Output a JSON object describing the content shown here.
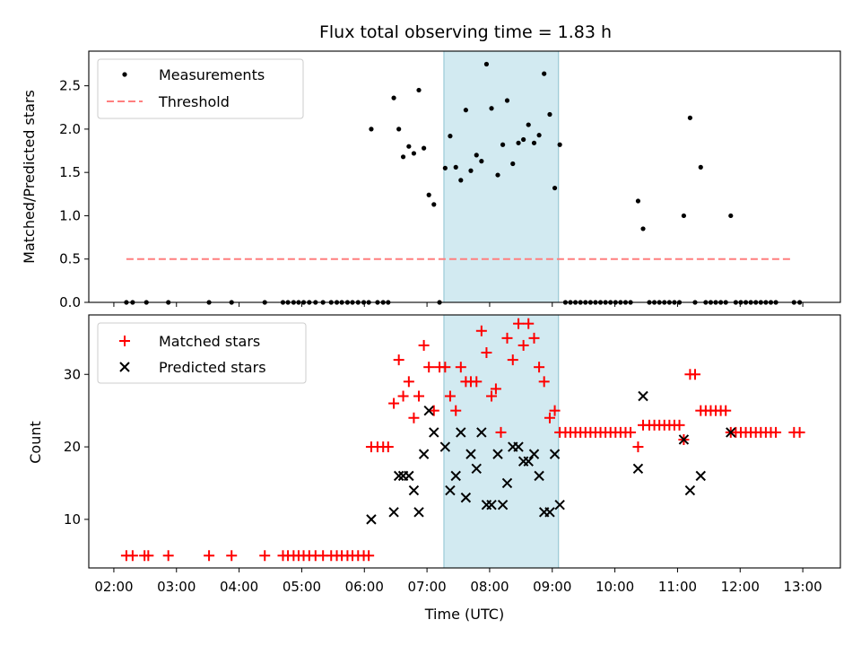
{
  "chart_data": {
    "title": "Flux total observing time = 1.83 h",
    "xlabel": "Time (UTC)",
    "x_unit": "hours UTC",
    "xlim": [
      1.6,
      13.6
    ],
    "x_ticks": [
      {
        "value": 2,
        "label": "02:00"
      },
      {
        "value": 3,
        "label": "03:00"
      },
      {
        "value": 4,
        "label": "04:00"
      },
      {
        "value": 5,
        "label": "05:00"
      },
      {
        "value": 6,
        "label": "06:00"
      },
      {
        "value": 7,
        "label": "07:00"
      },
      {
        "value": 8,
        "label": "08:00"
      },
      {
        "value": 9,
        "label": "09:00"
      },
      {
        "value": 10,
        "label": "10:00"
      },
      {
        "value": 11,
        "label": "11:00"
      },
      {
        "value": 12,
        "label": "12:00"
      },
      {
        "value": 13,
        "label": "13:00"
      }
    ],
    "shaded_span": {
      "x_start": 7.27,
      "x_end": 9.1,
      "color": "#add8e6"
    },
    "top": {
      "type": "scatter",
      "ylabel": "Matched/Predicted stars",
      "ylim": [
        0,
        2.9
      ],
      "y_ticks": [
        0.0,
        0.5,
        1.0,
        1.5,
        2.0,
        2.5
      ],
      "y_tick_labels": [
        "0.0",
        "0.5",
        "1.0",
        "1.5",
        "2.0",
        "2.5"
      ],
      "legend_position": "upper-left",
      "threshold": {
        "name": "Threshold",
        "value": 0.5,
        "x_range": [
          2.2,
          12.85
        ],
        "color": "#ff7f7f",
        "style": "dashed"
      },
      "measurements": {
        "name": "Measurements",
        "color": "#000000",
        "points": [
          [
            2.2,
            0
          ],
          [
            2.3,
            0
          ],
          [
            2.52,
            0
          ],
          [
            2.87,
            0
          ],
          [
            3.52,
            0
          ],
          [
            3.88,
            0
          ],
          [
            4.41,
            0
          ],
          [
            4.7,
            0
          ],
          [
            4.78,
            0
          ],
          [
            4.87,
            0
          ],
          [
            4.95,
            0
          ],
          [
            5.03,
            0
          ],
          [
            5.12,
            0
          ],
          [
            5.22,
            0
          ],
          [
            5.34,
            0
          ],
          [
            5.47,
            0
          ],
          [
            5.56,
            0
          ],
          [
            5.64,
            0
          ],
          [
            5.73,
            0
          ],
          [
            5.81,
            0
          ],
          [
            5.9,
            0
          ],
          [
            5.99,
            0
          ],
          [
            6.07,
            0
          ],
          [
            6.11,
            2.0
          ],
          [
            6.21,
            0
          ],
          [
            6.3,
            0
          ],
          [
            6.38,
            0
          ],
          [
            6.47,
            2.36
          ],
          [
            6.55,
            2.0
          ],
          [
            6.62,
            1.68
          ],
          [
            6.71,
            1.8
          ],
          [
            6.79,
            1.72
          ],
          [
            6.87,
            2.45
          ],
          [
            6.95,
            1.78
          ],
          [
            7.03,
            1.24
          ],
          [
            7.11,
            1.13
          ],
          [
            7.2,
            0
          ],
          [
            7.29,
            1.55
          ],
          [
            7.37,
            1.92
          ],
          [
            7.46,
            1.56
          ],
          [
            7.54,
            1.41
          ],
          [
            7.62,
            2.22
          ],
          [
            7.7,
            1.52
          ],
          [
            7.79,
            1.7
          ],
          [
            7.87,
            1.63
          ],
          [
            7.95,
            2.75
          ],
          [
            8.03,
            2.24
          ],
          [
            8.13,
            1.47
          ],
          [
            8.21,
            1.82
          ],
          [
            8.28,
            2.33
          ],
          [
            8.37,
            1.6
          ],
          [
            8.46,
            1.84
          ],
          [
            8.54,
            1.88
          ],
          [
            8.62,
            2.05
          ],
          [
            8.71,
            1.84
          ],
          [
            8.79,
            1.93
          ],
          [
            8.87,
            2.64
          ],
          [
            8.96,
            2.17
          ],
          [
            9.04,
            1.32
          ],
          [
            9.12,
            1.82
          ],
          [
            9.21,
            0
          ],
          [
            9.29,
            0
          ],
          [
            9.37,
            0
          ],
          [
            9.45,
            0
          ],
          [
            9.53,
            0
          ],
          [
            9.61,
            0
          ],
          [
            9.69,
            0
          ],
          [
            9.77,
            0
          ],
          [
            9.85,
            0
          ],
          [
            9.93,
            0
          ],
          [
            10.01,
            0
          ],
          [
            10.09,
            0
          ],
          [
            10.17,
            0
          ],
          [
            10.25,
            0
          ],
          [
            10.37,
            1.17
          ],
          [
            10.45,
            0.85
          ],
          [
            10.55,
            0
          ],
          [
            10.63,
            0
          ],
          [
            10.71,
            0
          ],
          [
            10.79,
            0
          ],
          [
            10.87,
            0
          ],
          [
            10.95,
            0
          ],
          [
            11.03,
            0
          ],
          [
            11.1,
            1.0
          ],
          [
            11.2,
            2.13
          ],
          [
            11.28,
            0
          ],
          [
            11.37,
            1.56
          ],
          [
            11.45,
            0
          ],
          [
            11.53,
            0
          ],
          [
            11.61,
            0
          ],
          [
            11.69,
            0
          ],
          [
            11.77,
            0
          ],
          [
            11.85,
            1.0
          ],
          [
            11.93,
            0
          ],
          [
            12.01,
            0
          ],
          [
            12.09,
            0
          ],
          [
            12.17,
            0
          ],
          [
            12.25,
            0
          ],
          [
            12.33,
            0
          ],
          [
            12.41,
            0
          ],
          [
            12.49,
            0
          ],
          [
            12.57,
            0
          ],
          [
            12.86,
            0
          ],
          [
            12.95,
            0
          ]
        ]
      }
    },
    "bottom": {
      "type": "scatter",
      "ylabel": "Count",
      "ylim": [
        3.3,
        38.2
      ],
      "y_ticks": [
        10,
        20,
        30
      ],
      "y_tick_labels": [
        "10",
        "20",
        "30"
      ],
      "legend_position": "upper-left",
      "series": [
        {
          "name": "Matched stars",
          "marker": "plus",
          "color": "#ff0000",
          "points": [
            [
              2.2,
              5
            ],
            [
              2.3,
              5
            ],
            [
              2.49,
              5
            ],
            [
              2.55,
              5
            ],
            [
              2.87,
              5
            ],
            [
              3.52,
              5
            ],
            [
              3.88,
              5
            ],
            [
              4.41,
              5
            ],
            [
              4.7,
              5
            ],
            [
              4.78,
              5
            ],
            [
              4.87,
              5
            ],
            [
              4.95,
              5
            ],
            [
              5.03,
              5
            ],
            [
              5.12,
              5
            ],
            [
              5.22,
              5
            ],
            [
              5.34,
              5
            ],
            [
              5.47,
              5
            ],
            [
              5.56,
              5
            ],
            [
              5.64,
              5
            ],
            [
              5.73,
              5
            ],
            [
              5.81,
              5
            ],
            [
              5.9,
              5
            ],
            [
              5.99,
              5
            ],
            [
              6.07,
              5
            ],
            [
              6.11,
              20
            ],
            [
              6.21,
              20
            ],
            [
              6.3,
              20
            ],
            [
              6.38,
              20
            ],
            [
              6.47,
              26
            ],
            [
              6.55,
              32
            ],
            [
              6.62,
              27
            ],
            [
              6.71,
              29
            ],
            [
              6.79,
              24
            ],
            [
              6.87,
              27
            ],
            [
              6.95,
              34
            ],
            [
              7.03,
              31
            ],
            [
              7.11,
              25
            ],
            [
              7.2,
              31
            ],
            [
              7.29,
              31
            ],
            [
              7.37,
              27
            ],
            [
              7.46,
              25
            ],
            [
              7.54,
              31
            ],
            [
              7.62,
              29
            ],
            [
              7.7,
              29
            ],
            [
              7.79,
              29
            ],
            [
              7.87,
              36
            ],
            [
              7.95,
              33
            ],
            [
              8.03,
              27
            ],
            [
              8.1,
              28
            ],
            [
              8.18,
              22
            ],
            [
              8.28,
              35
            ],
            [
              8.37,
              32
            ],
            [
              8.46,
              37
            ],
            [
              8.54,
              34
            ],
            [
              8.62,
              37
            ],
            [
              8.71,
              35
            ],
            [
              8.79,
              31
            ],
            [
              8.87,
              29
            ],
            [
              8.96,
              24
            ],
            [
              9.04,
              25
            ],
            [
              9.12,
              22
            ],
            [
              9.21,
              22
            ],
            [
              9.29,
              22
            ],
            [
              9.37,
              22
            ],
            [
              9.45,
              22
            ],
            [
              9.53,
              22
            ],
            [
              9.61,
              22
            ],
            [
              9.69,
              22
            ],
            [
              9.77,
              22
            ],
            [
              9.85,
              22
            ],
            [
              9.93,
              22
            ],
            [
              10.01,
              22
            ],
            [
              10.09,
              22
            ],
            [
              10.17,
              22
            ],
            [
              10.25,
              22
            ],
            [
              10.37,
              20
            ],
            [
              10.45,
              23
            ],
            [
              10.55,
              23
            ],
            [
              10.63,
              23
            ],
            [
              10.71,
              23
            ],
            [
              10.79,
              23
            ],
            [
              10.87,
              23
            ],
            [
              10.95,
              23
            ],
            [
              11.03,
              23
            ],
            [
              11.1,
              21
            ],
            [
              11.2,
              30
            ],
            [
              11.28,
              30
            ],
            [
              11.37,
              25
            ],
            [
              11.45,
              25
            ],
            [
              11.53,
              25
            ],
            [
              11.61,
              25
            ],
            [
              11.69,
              25
            ],
            [
              11.77,
              25
            ],
            [
              11.85,
              22
            ],
            [
              11.93,
              22
            ],
            [
              12.01,
              22
            ],
            [
              12.09,
              22
            ],
            [
              12.17,
              22
            ],
            [
              12.25,
              22
            ],
            [
              12.33,
              22
            ],
            [
              12.41,
              22
            ],
            [
              12.49,
              22
            ],
            [
              12.57,
              22
            ],
            [
              12.86,
              22
            ],
            [
              12.95,
              22
            ]
          ]
        },
        {
          "name": "Predicted stars",
          "marker": "x",
          "color": "#000000",
          "points": [
            [
              6.11,
              10
            ],
            [
              6.47,
              11
            ],
            [
              6.55,
              16
            ],
            [
              6.62,
              16
            ],
            [
              6.71,
              16
            ],
            [
              6.79,
              14
            ],
            [
              6.87,
              11
            ],
            [
              6.95,
              19
            ],
            [
              7.03,
              25
            ],
            [
              7.11,
              22
            ],
            [
              7.29,
              20
            ],
            [
              7.37,
              14
            ],
            [
              7.46,
              16
            ],
            [
              7.54,
              22
            ],
            [
              7.62,
              13
            ],
            [
              7.7,
              19
            ],
            [
              7.79,
              17
            ],
            [
              7.87,
              22
            ],
            [
              7.95,
              12
            ],
            [
              8.03,
              12
            ],
            [
              8.13,
              19
            ],
            [
              8.21,
              12
            ],
            [
              8.28,
              15
            ],
            [
              8.37,
              20
            ],
            [
              8.46,
              20
            ],
            [
              8.54,
              18
            ],
            [
              8.62,
              18
            ],
            [
              8.71,
              19
            ],
            [
              8.79,
              16
            ],
            [
              8.87,
              11
            ],
            [
              8.96,
              11
            ],
            [
              9.04,
              19
            ],
            [
              9.12,
              12
            ],
            [
              10.37,
              17
            ],
            [
              10.45,
              27
            ],
            [
              11.1,
              21
            ],
            [
              11.2,
              14
            ],
            [
              11.37,
              16
            ],
            [
              11.85,
              22
            ]
          ]
        }
      ]
    }
  }
}
